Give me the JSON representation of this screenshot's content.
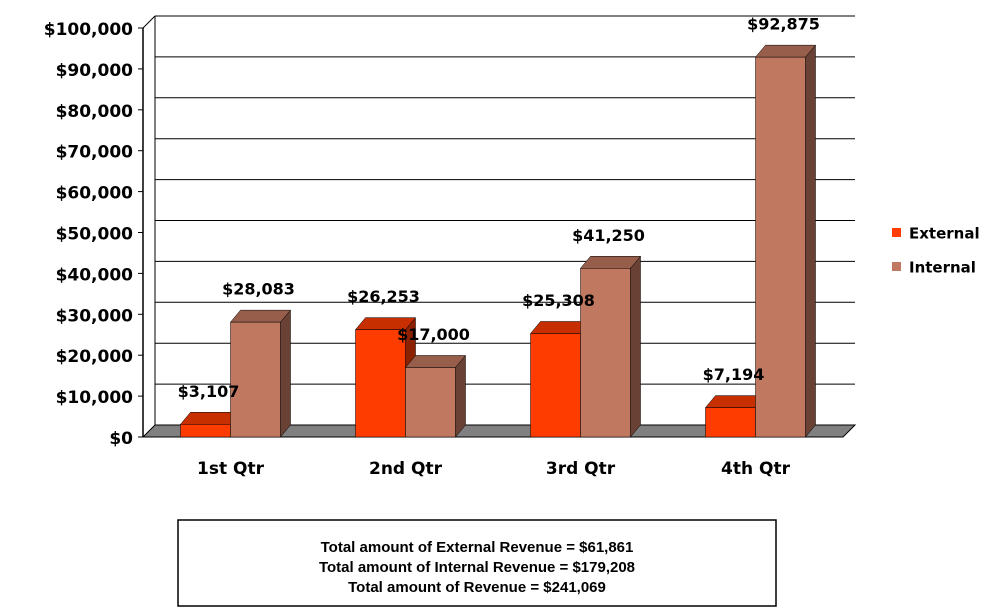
{
  "chart_data": {
    "type": "bar3d",
    "categories": [
      "1st Qtr",
      "2nd Qtr",
      "3rd Qtr",
      "4th Qtr"
    ],
    "series": [
      {
        "name": "External",
        "color": "#ff3c00",
        "values": [
          3107,
          26253,
          25308,
          7194
        ],
        "value_labels": [
          "$3,107",
          "$26,253",
          "$25,308",
          "$7,194"
        ]
      },
      {
        "name": "Internal",
        "color": "#c07860",
        "values": [
          28083,
          17000,
          41250,
          92875
        ],
        "value_labels": [
          "$28,083",
          "$17,000",
          "$41,250",
          "$92,875"
        ]
      }
    ],
    "ylim": [
      0,
      100000
    ],
    "yticks": [
      {
        "value": 0,
        "label": "$0"
      },
      {
        "value": 10000,
        "label": "$10,000"
      },
      {
        "value": 20000,
        "label": "$20,000"
      },
      {
        "value": 30000,
        "label": "$30,000"
      },
      {
        "value": 40000,
        "label": "$40,000"
      },
      {
        "value": 50000,
        "label": "$50,000"
      },
      {
        "value": 60000,
        "label": "$60,000"
      },
      {
        "value": 70000,
        "label": "$70,000"
      },
      {
        "value": 80000,
        "label": "$80,000"
      },
      {
        "value": 90000,
        "label": "$90,000"
      },
      {
        "value": 100000,
        "label": "$100,000"
      }
    ],
    "grid": true,
    "legend": "right",
    "annotations": [
      "Total amount of External Revenue = $61,861",
      "Total amount of Internal Revenue = $179,208",
      "Total amount of Revenue = $241,069"
    ]
  }
}
